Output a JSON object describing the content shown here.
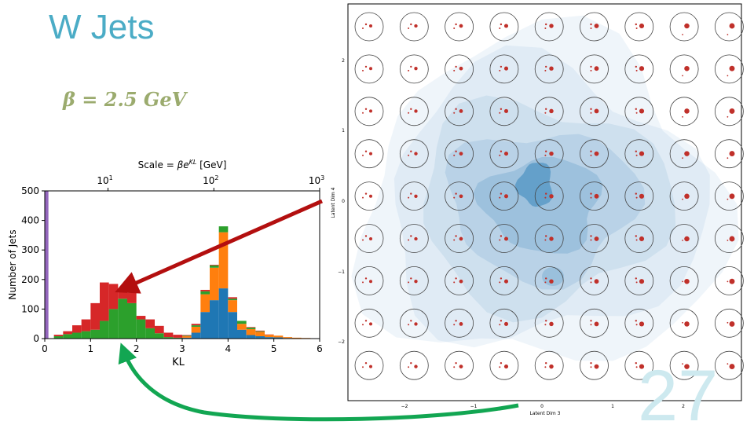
{
  "slide": {
    "title": "W Jets",
    "subtitle_formula": "β = 2.5 GeV",
    "slide_number": "27",
    "colors": {
      "title": "#4bacc6",
      "formula": "#9bab6e",
      "slide_number": "#cde9ef",
      "arrow_red": "#b30f0f",
      "arrow_green": "#12a652"
    }
  },
  "chart_data": [
    {
      "type": "bar",
      "title": "",
      "top_axis_label_prefix": "Scale = ",
      "top_axis_label_formula": "βe",
      "top_axis_label_sup": "KL",
      "top_axis_label_unit": "[GeV]",
      "top_ticks": [
        {
          "base": "10",
          "exp": "1",
          "kl": 1.38
        },
        {
          "base": "10",
          "exp": "2",
          "kl": 3.69
        },
        {
          "base": "10",
          "exp": "3",
          "kl": 6.0
        }
      ],
      "xlabel": "KL",
      "ylabel": "Number of Jets",
      "xlim": [
        0,
        6
      ],
      "ylim": [
        0,
        500
      ],
      "xticks": [
        "0",
        "1",
        "2",
        "3",
        "4",
        "5",
        "6"
      ],
      "yticks": [
        "0",
        "100",
        "200",
        "300",
        "400",
        "500"
      ],
      "bin_width": 0.2,
      "bin_starts": [
        0.2,
        0.4,
        0.6,
        0.8,
        1.0,
        1.2,
        1.4,
        1.6,
        1.8,
        2.0,
        2.2,
        2.4,
        2.6,
        2.8,
        3.0,
        3.2,
        3.4,
        3.6,
        3.8,
        4.0,
        4.2,
        4.4,
        4.6,
        4.8,
        5.0,
        5.2,
        5.4,
        5.6,
        5.8
      ],
      "series": [
        {
          "name": "blue",
          "color": "#1f77b4",
          "values": [
            0,
            0,
            0,
            0,
            0,
            0,
            0,
            0,
            0,
            0,
            0,
            0,
            0,
            0,
            3,
            20,
            90,
            130,
            170,
            90,
            30,
            12,
            8,
            5,
            4,
            2,
            1,
            1,
            0
          ]
        },
        {
          "name": "orange",
          "color": "#ff7f0e",
          "values": [
            0,
            0,
            0,
            0,
            0,
            0,
            0,
            0,
            0,
            0,
            0,
            0,
            0,
            0,
            5,
            20,
            60,
            110,
            190,
            40,
            20,
            20,
            15,
            8,
            6,
            3,
            2,
            1,
            1
          ]
        },
        {
          "name": "green",
          "color": "#2ca02c",
          "values": [
            8,
            15,
            20,
            25,
            30,
            60,
            100,
            135,
            120,
            65,
            35,
            18,
            5,
            3,
            2,
            5,
            10,
            8,
            20,
            5,
            10,
            5,
            2,
            0,
            0,
            0,
            0,
            0,
            0
          ]
        },
        {
          "name": "red",
          "color": "#d62728",
          "values": [
            5,
            10,
            25,
            40,
            90,
            130,
            85,
            35,
            35,
            12,
            30,
            25,
            15,
            10,
            2,
            5,
            5,
            2,
            0,
            5,
            0,
            2,
            2,
            1,
            0,
            0,
            0,
            0,
            0
          ]
        }
      ],
      "purple_spike": {
        "name": "purple",
        "color": "#9467bd",
        "x": 0.0,
        "width": 0.08,
        "value": 500
      }
    },
    {
      "type": "scatter",
      "title": "",
      "xlabel": "Latent Dim 3",
      "ylabel": "Latent Dim 4",
      "xticks": [
        "−2",
        "−1",
        "0",
        "1",
        "2"
      ],
      "yticks": [
        "2",
        "1",
        "0",
        "−1",
        "−2"
      ],
      "grid_rows": 9,
      "grid_cols": 9,
      "contour_levels": 6,
      "contour_color": "#1f77b4",
      "marker_color": "#c0302a"
    }
  ]
}
